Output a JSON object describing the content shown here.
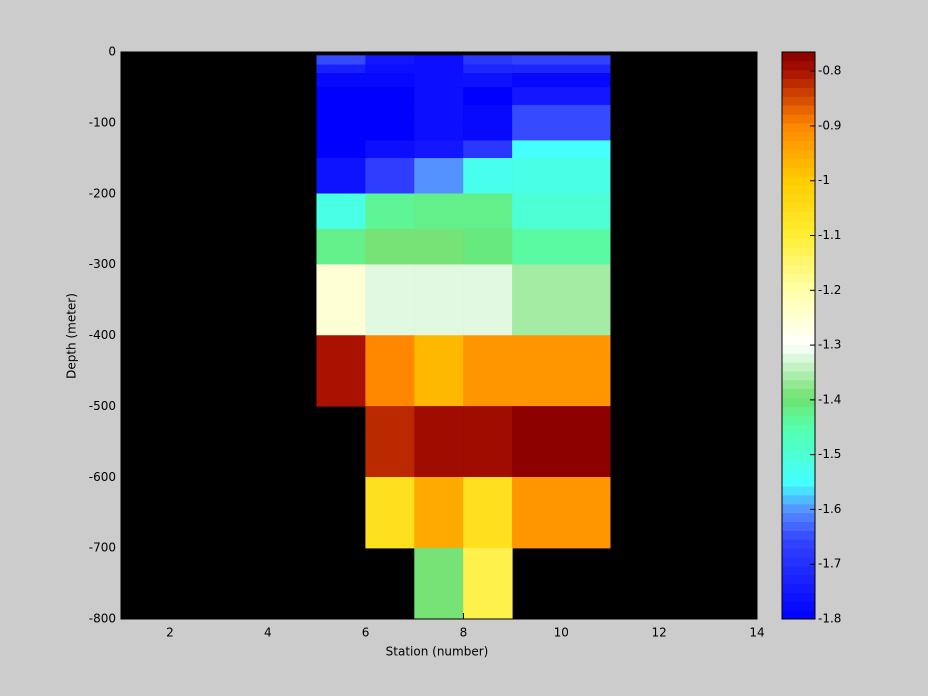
{
  "chart_data": {
    "type": "heatmap",
    "xlabel": "Station (number)",
    "ylabel": "Depth (meter)",
    "x": [
      5,
      6,
      7,
      8,
      9,
      10,
      11
    ],
    "y": [
      -5,
      -18,
      -30,
      -50,
      -75,
      -100,
      -125,
      -150,
      -200,
      -250,
      -300,
      -400,
      -500,
      -600,
      -700,
      -800
    ],
    "values": [
      [
        -1.65,
        -1.75,
        -1.77,
        -1.68,
        -1.66,
        -1.66
      ],
      [
        -1.73,
        -1.77,
        -1.77,
        -1.72,
        -1.72,
        -1.72
      ],
      [
        -1.78,
        -1.78,
        -1.77,
        -1.76,
        -1.78,
        -1.78
      ],
      [
        -1.8,
        -1.8,
        -1.77,
        -1.8,
        -1.75,
        -1.75
      ],
      [
        -1.8,
        -1.8,
        -1.77,
        -1.78,
        -1.65,
        -1.65
      ],
      [
        -1.8,
        -1.8,
        -1.77,
        -1.78,
        -1.65,
        -1.65
      ],
      [
        -1.8,
        -1.77,
        -1.75,
        -1.68,
        -1.55,
        -1.55
      ],
      [
        -1.76,
        -1.67,
        -1.6,
        -1.53,
        -1.52,
        -1.52
      ],
      [
        -1.52,
        -1.43,
        -1.42,
        -1.42,
        -1.5,
        -1.5
      ],
      [
        -1.42,
        -1.39,
        -1.39,
        -1.41,
        -1.44,
        -1.44
      ],
      [
        -1.25,
        -1.32,
        -1.32,
        -1.32,
        -1.36,
        -1.36
      ],
      [
        -0.8,
        -0.9,
        -0.97,
        -0.92,
        -0.92,
        -0.92
      ],
      [
        null,
        -0.82,
        -0.79,
        -0.79,
        -0.77,
        -0.77
      ],
      [
        null,
        -1.06,
        -0.95,
        -1.06,
        -0.92,
        -0.92
      ],
      [
        null,
        null,
        -1.39,
        -1.12,
        null,
        null
      ]
    ],
    "xlim": [
      1,
      14
    ],
    "xticks": [
      2,
      4,
      6,
      8,
      10,
      12,
      14
    ],
    "ylim": [
      -800,
      0
    ],
    "yticks": [
      0,
      -100,
      -200,
      -300,
      -400,
      -500,
      -600,
      -700,
      -800
    ],
    "clim": [
      -1.8,
      -0.765
    ],
    "cticks": [
      -0.8,
      -0.9,
      -1,
      -1.1,
      -1.2,
      -1.3,
      -1.4,
      -1.5,
      -1.6,
      -1.7,
      -1.8
    ],
    "background": "#000000"
  }
}
